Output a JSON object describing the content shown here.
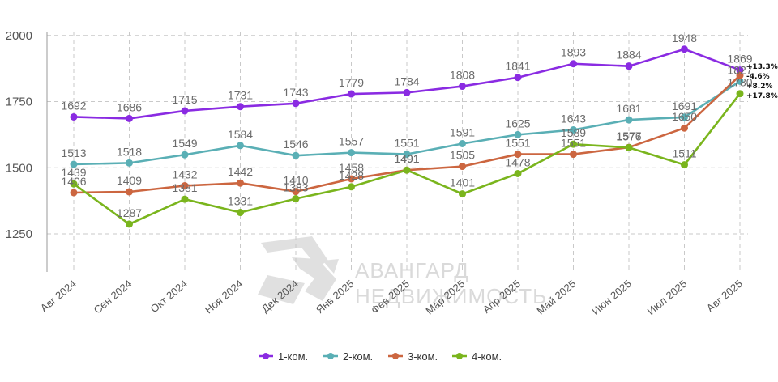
{
  "chart_data": {
    "type": "line",
    "categories": [
      "Авг 2024",
      "Сен 2024",
      "Окт 2024",
      "Ноя 2024",
      "Дек 2024",
      "Янв 2025",
      "Фев 2025",
      "Мар 2025",
      "Апр 2025",
      "Май 2025",
      "Июн 2025",
      "Июл 2025",
      "Авг 2025"
    ],
    "ylim": [
      1100,
      2000
    ],
    "yticks": [
      1250,
      1500,
      1750,
      2000
    ],
    "grid": true,
    "legend_position": "bottom",
    "series": [
      {
        "name": "1-ком.",
        "color": "#8a2be2",
        "values": [
          1692,
          1686,
          1715,
          1731,
          1743,
          1779,
          1784,
          1808,
          1841,
          1893,
          1884,
          1948,
          1869
        ],
        "change": "+13.3%"
      },
      {
        "name": "2-ком.",
        "color": "#5aafb5",
        "values": [
          1513,
          1518,
          1549,
          1584,
          1546,
          1557,
          1551,
          1591,
          1625,
          1643,
          1681,
          1691,
          1827
        ],
        "change": "-4.6%"
      },
      {
        "name": "3-ком.",
        "color": "#cc6640",
        "values": [
          1406,
          1409,
          1432,
          1442,
          1410,
          1458,
          1491,
          1505,
          1551,
          1551,
          1577,
          1650,
          1849
        ],
        "change": "+8.2%"
      },
      {
        "name": "4-ком.",
        "color": "#7ab51d",
        "values": [
          1439,
          1287,
          1381,
          1331,
          1383,
          1428,
          1491,
          1401,
          1478,
          1589,
          1576,
          1511,
          1780
        ],
        "change": "+17.8%"
      }
    ],
    "point_labels": [
      [
        "1692",
        "1686",
        "1715",
        "1731",
        "1743",
        "1779",
        "1784",
        "1808",
        "1841",
        "1893",
        "1884",
        "1948",
        "1869"
      ],
      [
        "1513",
        "1518",
        "1549",
        "1584",
        "1546",
        "1557",
        "1551",
        "1591",
        "1625",
        "1643",
        "1681",
        "1691",
        "1827"
      ],
      [
        "1406",
        "1409",
        "1432",
        "1442",
        "1410",
        "1458",
        "1491",
        "1505",
        "1551",
        "1551",
        "1577",
        "1650",
        ""
      ],
      [
        "1439",
        "1287",
        "1381",
        "1331",
        "1383",
        "1428",
        "1491",
        "1401",
        "1478",
        "1589",
        "1576",
        "1511",
        "1780"
      ]
    ]
  },
  "watermark": {
    "line1": "АВАНГАРД",
    "line2": "НЕДВИЖИМОСТЬ"
  }
}
